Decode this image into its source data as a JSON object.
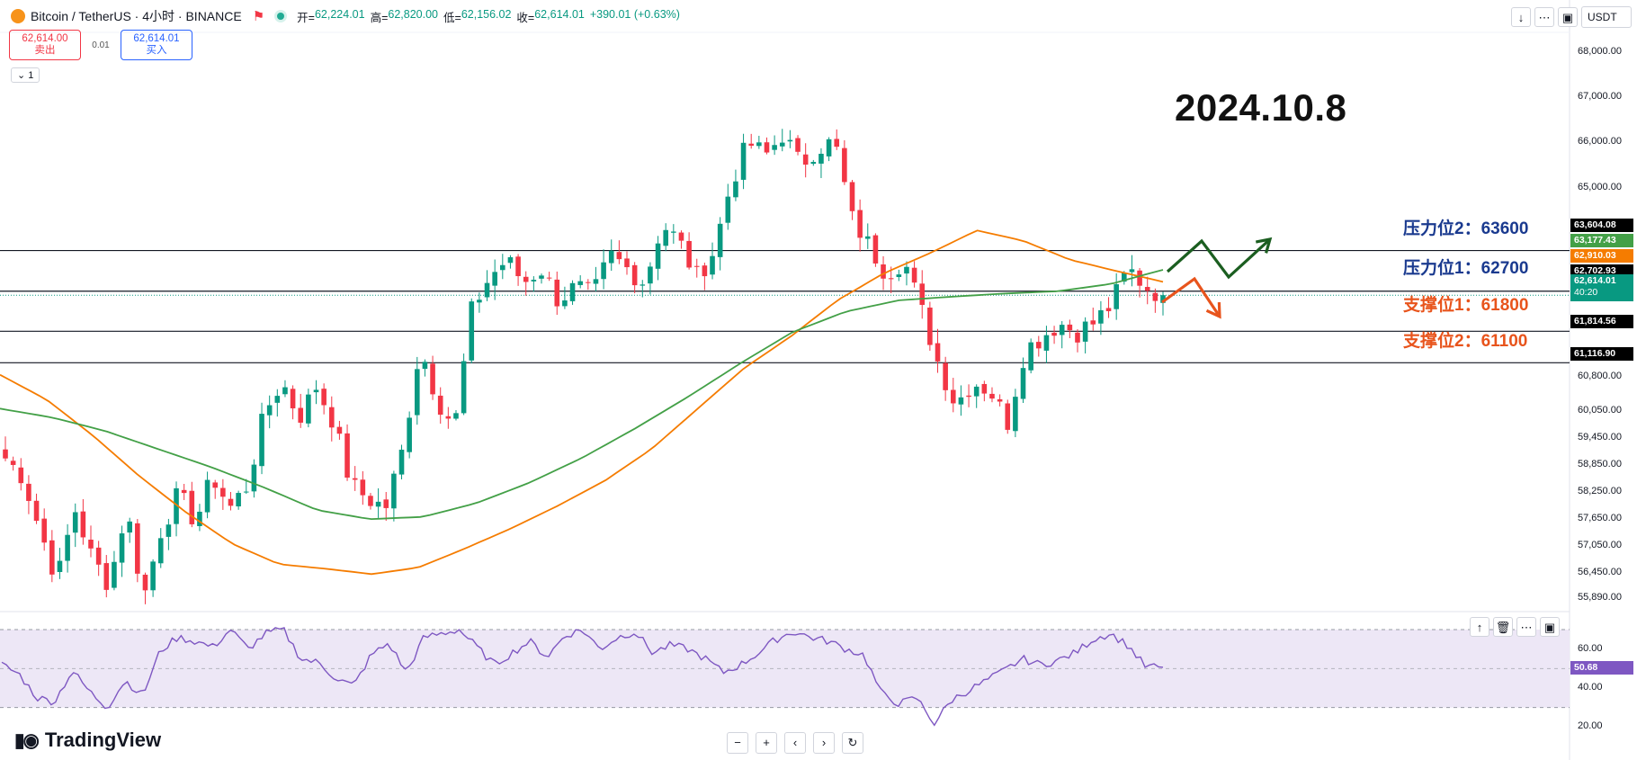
{
  "header": {
    "title": "Bitcoin / TetherUS · 4小时 · BINANCE",
    "ohlc": [
      {
        "k": "开=",
        "v": "62,224.01"
      },
      {
        "k": "高=",
        "v": "62,820.00"
      },
      {
        "k": "低=",
        "v": "62,156.02"
      },
      {
        "k": "收=",
        "v": "62,614.01"
      },
      {
        "k": "",
        "v": "+390.01 (+0.63%)"
      }
    ]
  },
  "trade": {
    "sell_price": "62,614.00",
    "sell_label": "卖出",
    "spread": "0.01",
    "buy_price": "62,614.01",
    "buy_label": "买入",
    "qty": "1"
  },
  "toolbar": {
    "currency": "USDT"
  },
  "annotation": {
    "date": "2024.10.8",
    "levels": [
      {
        "text": "压力位2：63600",
        "color": "#1a3a8f",
        "price": 63600
      },
      {
        "text": "压力位1：62700",
        "color": "#1a3a8f",
        "price": 62700
      },
      {
        "text": "支撑位1：61800",
        "color": "#e8541c",
        "price": 61800
      },
      {
        "text": "支撑位2：61100",
        "color": "#e8541c",
        "price": 61100
      }
    ]
  },
  "price_axis": {
    "ticks": [
      {
        "label": "68,000.00",
        "price": 68000
      },
      {
        "label": "67,000.00",
        "price": 67000
      },
      {
        "label": "66,000.00",
        "price": 66000
      },
      {
        "label": "65,000.00",
        "price": 65000
      },
      {
        "label": "60,800.00",
        "price": 60800
      },
      {
        "label": "60,050.00",
        "price": 60050
      },
      {
        "label": "59,450.00",
        "price": 59450
      },
      {
        "label": "58,850.00",
        "price": 58850
      },
      {
        "label": "58,250.00",
        "price": 58250
      },
      {
        "label": "57,650.00",
        "price": 57650
      },
      {
        "label": "57,050.00",
        "price": 57050
      },
      {
        "label": "56,450.00",
        "price": 56450
      },
      {
        "label": "55,890.00",
        "price": 55890
      }
    ],
    "tags": [
      {
        "label": "63,604.08",
        "price": 63604.08,
        "bg": "#000000"
      },
      {
        "label": "63,177.43",
        "price": 63177.43,
        "bg": "#43a047"
      },
      {
        "label": "62,910.03",
        "price": 62910.03,
        "bg": "#f57c00"
      },
      {
        "label": "62,702.93",
        "price": 62702.93,
        "bg": "#000000"
      },
      {
        "label": "61,814.56",
        "price": 61814.56,
        "bg": "#000000"
      },
      {
        "label": "61,116.90",
        "price": 61116.9,
        "bg": "#000000"
      }
    ],
    "last": {
      "label": "62,614.01",
      "countdown": "40:20",
      "price": 62614.01,
      "bg": "#089981"
    }
  },
  "rsi": {
    "ticks": [
      {
        "label": "60.00",
        "value": 60
      },
      {
        "label": "40.00",
        "value": 40
      },
      {
        "label": "20.00",
        "value": 20
      }
    ],
    "last": {
      "label": "50.68",
      "value": 50.68
    },
    "upper_band": 70,
    "lower_band": 30,
    "middle": 50
  },
  "brand": "TradingView",
  "colors": {
    "up": "#089981",
    "down": "#f23645",
    "ma_fast": "#f57c00",
    "ma_slow": "#43a047",
    "rsi_line": "#7e57c2",
    "rsi_band": "#ede7f6",
    "arrow_green": "#1b5e20",
    "arrow_orange": "#e8541c"
  },
  "icons": {
    "header": [
      "bitcoin-logo-icon",
      "flag-icon",
      "live-dot-icon"
    ],
    "toolbar": [
      "arrow-down-icon",
      "collapse-icon",
      "fullscreen-icon"
    ],
    "rsi": [
      "arrow-up-icon",
      "trash-icon",
      "collapse-icon",
      "maximize-icon"
    ],
    "nav": [
      "zoom-out-icon",
      "zoom-in-icon",
      "scroll-left-icon",
      "scroll-right-icon",
      "reset-icon"
    ]
  },
  "chart_data": {
    "type": "candlestick",
    "symbol": "Bitcoin / TetherUS",
    "interval": "4小时",
    "exchange": "BINANCE",
    "price_range": [
      55600,
      68400
    ],
    "horizontal_levels": [
      63604.08,
      62702.93,
      61814.56,
      61116.9
    ],
    "close_path": [
      59000,
      58600,
      57400,
      56300,
      57900,
      56800,
      56200,
      57900,
      55900,
      57400,
      58200,
      57600,
      58600,
      57900,
      58400,
      60000,
      60700,
      59900,
      60600,
      59800,
      58400,
      58100,
      57900,
      59200,
      61500,
      60300,
      59700,
      62300,
      63000,
      63400,
      62900,
      63200,
      62500,
      62800,
      62600,
      63500,
      63200,
      62900,
      64200,
      63800,
      63000,
      63600,
      65100,
      66000,
      65700,
      66200,
      65500,
      65900,
      66000,
      64300,
      63700,
      63100,
      63400,
      62300,
      61100,
      60200,
      60700,
      60500,
      59800,
      61400,
      61700,
      62000,
      61800,
      62000,
      62400,
      63200,
      62800,
      62614
    ],
    "ma_fast_path": [
      60850,
      60300,
      59500,
      58600,
      57800,
      57100,
      56650,
      56550,
      56430,
      56580,
      57000,
      57450,
      57950,
      58500,
      59200,
      60100,
      61000,
      61700,
      62500,
      63100,
      63550,
      64050,
      63820,
      63400,
      63150,
      62910
    ],
    "ma_slow_path": [
      60100,
      59900,
      59600,
      59200,
      58800,
      58350,
      57850,
      57650,
      57700,
      58000,
      58450,
      59000,
      59650,
      60350,
      61100,
      61800,
      62250,
      62500,
      62580,
      62650,
      62700,
      62860,
      63177
    ],
    "rsi_path": [
      52,
      47,
      35,
      33,
      49,
      38,
      30,
      44,
      36,
      59,
      66,
      64,
      61,
      70,
      60,
      68,
      70,
      55,
      53,
      45,
      41,
      57,
      63,
      48,
      66,
      68,
      70,
      61,
      52,
      58,
      64,
      56,
      67,
      70,
      60,
      66,
      69,
      58,
      62,
      60,
      55,
      48,
      52,
      58,
      65,
      69,
      66,
      64,
      60,
      57,
      37,
      32,
      35,
      22,
      34,
      39,
      44,
      49,
      55,
      52,
      54,
      58,
      65,
      68,
      62,
      51,
      50.68
    ]
  }
}
